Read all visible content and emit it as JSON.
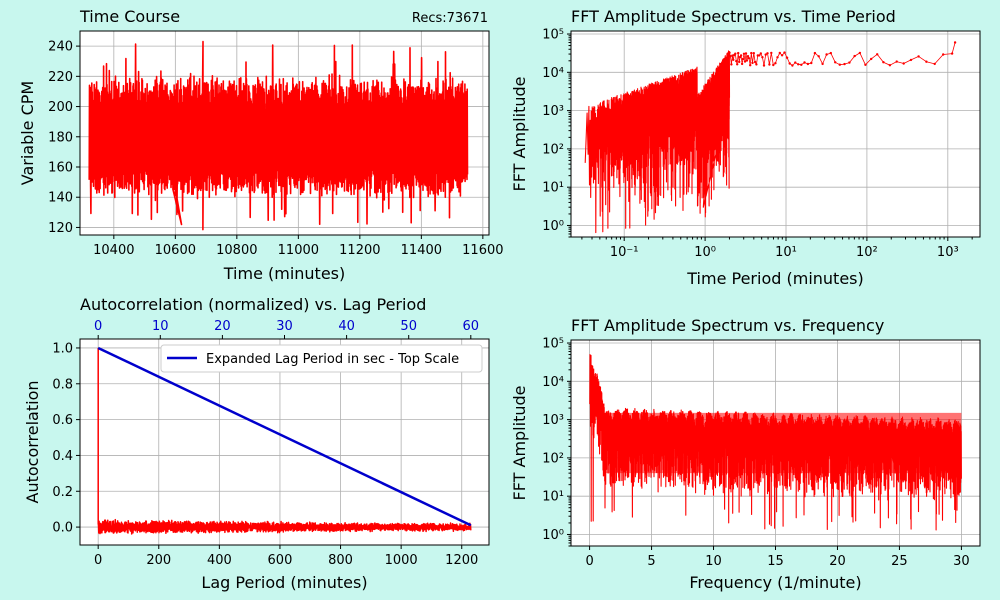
{
  "page": {
    "background": "#c8f7ee"
  },
  "colors": {
    "data": "#ff0000",
    "lag_line": "#0000cc",
    "top_ticks": "#0000cc",
    "plot_bg": "#ffffff",
    "grid": "#b0b0b0"
  },
  "chart_data": [
    {
      "id": "time-course",
      "type": "line",
      "title": "Time Course",
      "annotation": "Recs:73671",
      "xlabel": "Time (minutes)",
      "ylabel": "Variable  CPM",
      "xlim": [
        10290,
        11620
      ],
      "ylim": [
        115,
        250
      ],
      "xticks": [
        10400,
        10600,
        10800,
        11000,
        11200,
        11400,
        11600
      ],
      "yticks": [
        120,
        140,
        160,
        180,
        200,
        220,
        240
      ],
      "x_range": [
        10320,
        11550
      ],
      "y_band": [
        145,
        218
      ],
      "y_mean": 180,
      "y_extremes": [
        122,
        243
      ],
      "grid": true
    },
    {
      "id": "fft-period",
      "type": "line",
      "title": "FFT Amplitude Spectrum vs. Time Period",
      "xlabel": "Time Period (minutes)",
      "ylabel": "FFT Amplitude",
      "xscale": "log",
      "yscale": "log",
      "xlim": [
        0.022,
        2500
      ],
      "ylim": [
        0.5,
        120000
      ],
      "xticks": [
        0.1,
        1,
        10,
        100,
        1000
      ],
      "xtick_labels": [
        "10⁻¹",
        "10⁰",
        "10¹",
        "10²",
        "10³"
      ],
      "yticks": [
        1,
        10,
        100,
        1000,
        10000,
        100000
      ],
      "ytick_labels": [
        "10⁰",
        "10¹",
        "10²",
        "10³",
        "10⁴",
        "10⁵"
      ],
      "x_range": [
        0.033,
        1230
      ],
      "grid": true
    },
    {
      "id": "autocorrelation",
      "type": "line",
      "title": "Autocorrelation (normalized) vs. Lag Period",
      "xlabel": "Lag Period (minutes)",
      "ylabel": "Autocorrelation",
      "xlim": [
        -60,
        1290
      ],
      "ylim": [
        -0.1,
        1.05
      ],
      "xticks": [
        0,
        200,
        400,
        600,
        800,
        1000,
        1200
      ],
      "yticks": [
        0.0,
        0.2,
        0.4,
        0.6,
        0.8,
        1.0
      ],
      "ytick_labels": [
        "0.0",
        "0.2",
        "0.4",
        "0.6",
        "0.8",
        "1.0"
      ],
      "top_axis": {
        "ticks": [
          0,
          10,
          20,
          30,
          40,
          50,
          60
        ],
        "lim": [
          -2.93,
          62.93
        ]
      },
      "series": [
        {
          "name": "Expanded Lag Period in sec - Top Scale",
          "x": [
            0,
            60
          ],
          "y": [
            1.0,
            0.01
          ],
          "axis": "top"
        }
      ],
      "autocorr_noise": 0.025,
      "legend": "top-right",
      "grid": true
    },
    {
      "id": "fft-frequency",
      "type": "line",
      "title": "FFT Amplitude Spectrum vs. Frequency",
      "xlabel": "Frequency (1/minute)",
      "ylabel": "FFT Amplitude",
      "yscale": "log",
      "xlim": [
        -1.5,
        31.5
      ],
      "ylim": [
        0.5,
        120000
      ],
      "xticks": [
        0,
        5,
        10,
        15,
        20,
        25,
        30
      ],
      "yticks": [
        1,
        10,
        100,
        1000,
        10000,
        100000
      ],
      "ytick_labels": [
        "10⁰",
        "10¹",
        "10²",
        "10³",
        "10⁴",
        "10⁵"
      ],
      "x_range": [
        0.02,
        30
      ],
      "grid": true
    }
  ]
}
